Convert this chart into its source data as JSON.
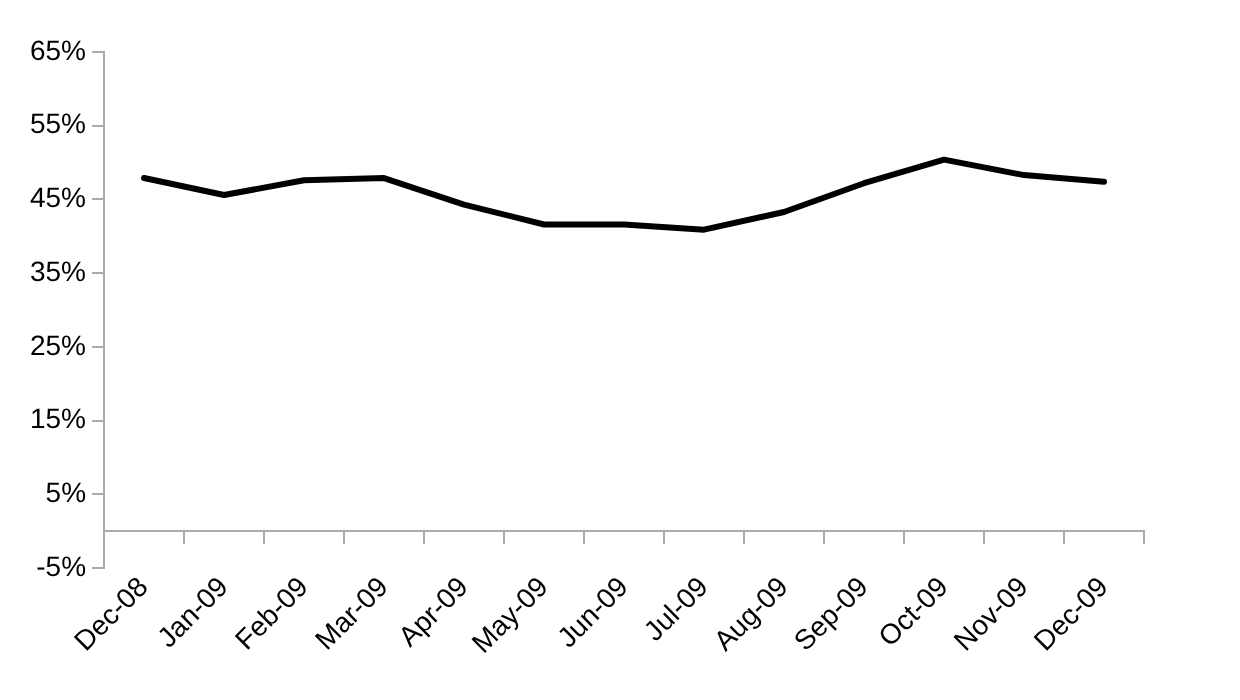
{
  "chart_data": {
    "type": "line",
    "categories": [
      "Dec-08",
      "Jan-09",
      "Feb-09",
      "Mar-09",
      "Apr-09",
      "May-09",
      "Jun-09",
      "Jul-09",
      "Aug-09",
      "Sep-09",
      "Oct-09",
      "Nov-09",
      "Dec-09"
    ],
    "series": [
      {
        "color": "#000000",
        "values": [
          47.9,
          45.6,
          47.6,
          47.9,
          44.3,
          41.6,
          41.6,
          40.9,
          43.3,
          47.2,
          50.4,
          48.3,
          47.4
        ]
      }
    ],
    "ylim": [
      -5,
      65
    ],
    "yticks": [
      {
        "value": -5,
        "label": "-5%"
      },
      {
        "value": 5,
        "label": "5%"
      },
      {
        "value": 15,
        "label": "15%"
      },
      {
        "value": 25,
        "label": "25%"
      },
      {
        "value": 35,
        "label": "35%"
      },
      {
        "value": 45,
        "label": "45%"
      },
      {
        "value": 55,
        "label": "55%"
      },
      {
        "value": 65,
        "label": "65%"
      }
    ],
    "grid": false,
    "legend": false,
    "marker": "none",
    "line_style": "solid"
  }
}
